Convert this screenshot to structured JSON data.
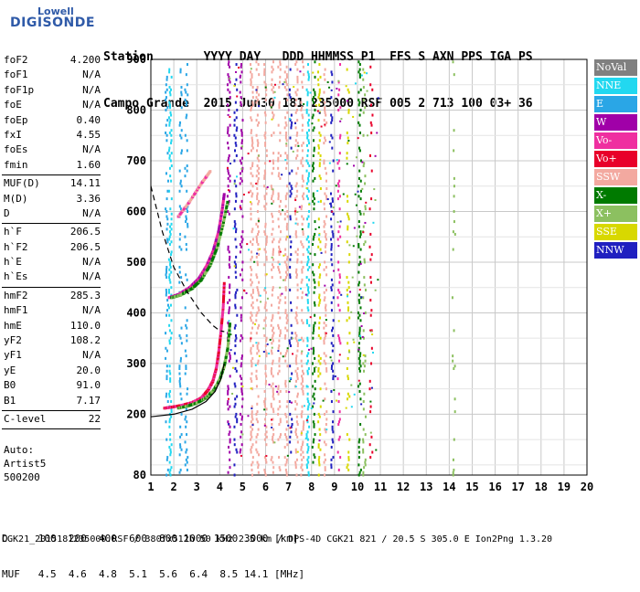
{
  "logo": {
    "top_text": "Lowell",
    "main_text": "DIGISONDE"
  },
  "header": {
    "labels": "Station       YYYY DAY   DDD HHMMSS P1  FFS S AXN PPS IGA PS",
    "values": "Campo Grande  2015 Jun30 181 235000 RSF 005 2 713 100 03+ 36"
  },
  "params_group1": [
    {
      "key": "foF2",
      "value": "4.200"
    },
    {
      "key": "foF1",
      "value": "N/A"
    },
    {
      "key": "foF1p",
      "value": "N/A"
    },
    {
      "key": "foE",
      "value": "N/A"
    },
    {
      "key": "foEp",
      "value": "0.40"
    },
    {
      "key": "fxI",
      "value": "4.55"
    },
    {
      "key": "foEs",
      "value": "N/A"
    },
    {
      "key": "fmin",
      "value": "1.60"
    }
  ],
  "params_group2": [
    {
      "key": "MUF(D)",
      "value": "14.11"
    },
    {
      "key": "M(D)",
      "value": "3.36"
    },
    {
      "key": "D",
      "value": "N/A"
    }
  ],
  "params_group3": [
    {
      "key": "h`F",
      "value": "206.5"
    },
    {
      "key": "h`F2",
      "value": "206.5"
    },
    {
      "key": "h`E",
      "value": "N/A"
    },
    {
      "key": "h`Es",
      "value": "N/A"
    }
  ],
  "params_group4": [
    {
      "key": "hmF2",
      "value": "285.3"
    },
    {
      "key": "hmF1",
      "value": "N/A"
    },
    {
      "key": "hmE",
      "value": "110.0"
    },
    {
      "key": "yF2",
      "value": "108.2"
    },
    {
      "key": "yF1",
      "value": "N/A"
    },
    {
      "key": "yE",
      "value": "20.0"
    },
    {
      "key": "B0",
      "value": "91.0"
    },
    {
      "key": "B1",
      "value": "7.17"
    }
  ],
  "params_group5": [
    {
      "key": "C-level",
      "value": "22"
    }
  ],
  "auto": {
    "line1": "Auto:",
    "line2": "Artist5",
    "line3": "500200"
  },
  "legend": [
    {
      "label": "NoVal",
      "color": "#808080"
    },
    {
      "label": "NNE",
      "color": "#22d8f0"
    },
    {
      "label": "E",
      "color": "#2aa6e6"
    },
    {
      "label": "W",
      "color": "#a000a8"
    },
    {
      "label": "Vo-",
      "color": "#ef2fa0"
    },
    {
      "label": "Vo+",
      "color": "#e8002a"
    },
    {
      "label": "SSW",
      "color": "#f3a9a0"
    },
    {
      "label": "X-",
      "color": "#007a00"
    },
    {
      "label": "X+",
      "color": "#8cc060"
    },
    {
      "label": "SSE",
      "color": "#d8d800"
    },
    {
      "label": "NNW",
      "color": "#2020c0"
    }
  ],
  "footer": {
    "line1": "D     100  200  400  600  800 1000 1500 3000 [km]",
    "line2": "MUF   4.5  4.6  4.8  5.1  5.6  6.4  8.5 14.1 [MHz]",
    "line3": "CGK21_2015181235000.RSF / 380fx512h 50 kHz 2.5 km / DPS-4D CGK21 821 / 20.5 S 305.0 E Ion2Png 1.3.20"
  },
  "chart_data": {
    "type": "scatter",
    "xlim": [
      1,
      20
    ],
    "ylim": [
      80,
      900
    ],
    "xticks": [
      1,
      2,
      3,
      4,
      5,
      6,
      7,
      8,
      9,
      10,
      11,
      12,
      13,
      14,
      15,
      16,
      17,
      18,
      19,
      20
    ],
    "yticks": [
      80,
      200,
      300,
      400,
      500,
      600,
      700,
      800,
      900
    ],
    "grid": true,
    "traces": {
      "o_low": [
        [
          1.6,
          212
        ],
        [
          1.9,
          214
        ],
        [
          2.3,
          217
        ],
        [
          2.8,
          223
        ],
        [
          3.2,
          232
        ],
        [
          3.5,
          248
        ],
        [
          3.7,
          265
        ],
        [
          3.85,
          290
        ],
        [
          3.95,
          320
        ],
        [
          4.05,
          360
        ],
        [
          4.15,
          410
        ],
        [
          4.2,
          460
        ]
      ],
      "o_high": [
        [
          1.8,
          430
        ],
        [
          2.2,
          436
        ],
        [
          2.7,
          450
        ],
        [
          3.1,
          468
        ],
        [
          3.4,
          490
        ],
        [
          3.7,
          520
        ],
        [
          3.95,
          560
        ],
        [
          4.1,
          600
        ],
        [
          4.2,
          635
        ]
      ],
      "x_low": [
        [
          2.2,
          212
        ],
        [
          2.6,
          216
        ],
        [
          3.0,
          222
        ],
        [
          3.4,
          232
        ],
        [
          3.75,
          248
        ],
        [
          4.0,
          268
        ],
        [
          4.2,
          295
        ],
        [
          4.35,
          330
        ],
        [
          4.45,
          380
        ]
      ],
      "x_high": [
        [
          1.9,
          430
        ],
        [
          2.3,
          435
        ],
        [
          2.8,
          448
        ],
        [
          3.2,
          465
        ],
        [
          3.6,
          495
        ],
        [
          3.9,
          530
        ],
        [
          4.15,
          575
        ],
        [
          4.35,
          620
        ]
      ],
      "upper_faint": [
        [
          2.2,
          590
        ],
        [
          2.7,
          620
        ],
        [
          3.2,
          655
        ],
        [
          3.6,
          680
        ]
      ],
      "profile_solid": [
        [
          1.0,
          195
        ],
        [
          2.0,
          200
        ],
        [
          2.8,
          210
        ],
        [
          3.4,
          225
        ],
        [
          3.8,
          245
        ],
        [
          4.05,
          270
        ],
        [
          4.2,
          300
        ]
      ],
      "profile_dashed": [
        [
          1.0,
          650
        ],
        [
          1.5,
          560
        ],
        [
          2.0,
          490
        ],
        [
          2.6,
          440
        ],
        [
          3.2,
          400
        ],
        [
          3.7,
          375
        ],
        [
          4.0,
          365
        ],
        [
          4.2,
          363
        ]
      ]
    }
  }
}
